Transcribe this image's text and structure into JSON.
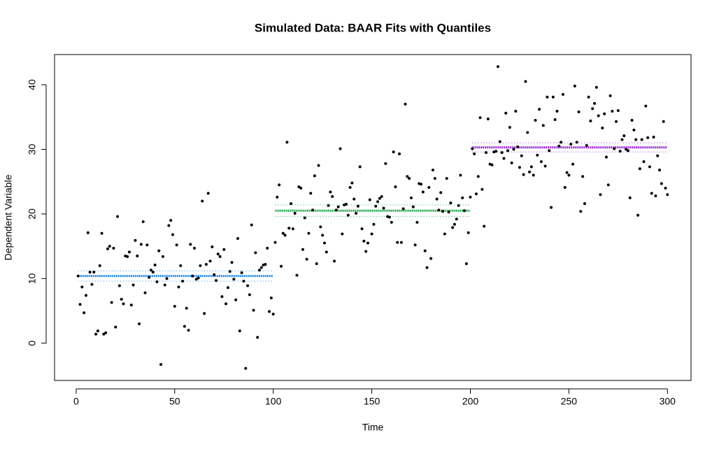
{
  "chart_data": {
    "type": "scatter",
    "title": "Simulated Data: BAAR Fits with Quantiles",
    "xlabel": "Time",
    "ylabel": "Dependent Variable",
    "xlim": [
      -10.96,
      311.96
    ],
    "ylim": [
      -5.77,
      44.67
    ],
    "xticks": [
      0,
      50,
      100,
      150,
      200,
      250,
      300
    ],
    "yticks": [
      0,
      10,
      20,
      30,
      40
    ],
    "color": "#000000",
    "x": [
      1,
      2,
      3,
      4,
      5,
      6,
      7,
      8,
      9,
      10,
      11,
      12,
      13,
      14,
      15,
      16,
      17,
      18,
      19,
      20,
      21,
      22,
      23,
      24,
      25,
      26,
      27,
      28,
      29,
      30,
      31,
      32,
      33,
      34,
      35,
      36,
      37,
      38,
      39,
      40,
      41,
      42,
      43,
      44,
      45,
      46,
      47,
      48,
      49,
      50,
      51,
      52,
      53,
      54,
      55,
      56,
      57,
      58,
      59,
      60,
      61,
      62,
      63,
      64,
      65,
      66,
      67,
      68,
      69,
      70,
      71,
      72,
      73,
      74,
      75,
      76,
      77,
      78,
      79,
      80,
      81,
      82,
      83,
      84,
      85,
      86,
      87,
      88,
      89,
      90,
      91,
      92,
      93,
      94,
      95,
      96,
      97,
      98,
      99,
      100,
      101,
      102,
      103,
      104,
      105,
      106,
      107,
      108,
      109,
      110,
      111,
      112,
      113,
      114,
      115,
      116,
      117,
      118,
      119,
      120,
      121,
      122,
      123,
      124,
      125,
      126,
      127,
      128,
      129,
      130,
      131,
      132,
      133,
      134,
      135,
      136,
      137,
      138,
      139,
      140,
      141,
      142,
      143,
      144,
      145,
      146,
      147,
      148,
      149,
      150,
      151,
      152,
      153,
      154,
      155,
      156,
      157,
      158,
      159,
      160,
      161,
      162,
      163,
      164,
      165,
      166,
      167,
      168,
      169,
      170,
      171,
      172,
      173,
      174,
      175,
      176,
      177,
      178,
      179,
      180,
      181,
      182,
      183,
      184,
      185,
      186,
      187,
      188,
      189,
      190,
      191,
      192,
      193,
      194,
      195,
      196,
      197,
      198,
      199,
      200,
      201,
      202,
      203,
      204,
      205,
      206,
      207,
      208,
      209,
      210,
      211,
      212,
      213,
      214,
      215,
      216,
      217,
      218,
      219,
      220,
      221,
      222,
      223,
      224,
      225,
      226,
      227,
      228,
      229,
      230,
      231,
      232,
      233,
      234,
      235,
      236,
      237,
      238,
      239,
      240,
      241,
      242,
      243,
      244,
      245,
      246,
      247,
      248,
      249,
      250,
      251,
      252,
      253,
      254,
      255,
      256,
      257,
      258,
      259,
      260,
      261,
      262,
      263,
      264,
      265,
      266,
      267,
      268,
      269,
      270,
      271,
      272,
      273,
      274,
      275,
      276,
      277,
      278,
      279,
      280,
      281,
      282,
      283,
      284,
      285,
      286,
      287,
      288,
      289,
      290,
      291,
      292,
      293,
      294,
      295,
      296,
      297,
      298,
      299,
      300
    ],
    "values": [
      10.4,
      6,
      8.7,
      4.7,
      7.4,
      17.1,
      11,
      9.1,
      11,
      1.4,
      1.9,
      12,
      17,
      1.4,
      1.6,
      14.6,
      15,
      6.3,
      14.7,
      2.5,
      19.6,
      8.9,
      6.8,
      6.1,
      13.5,
      13.4,
      14.1,
      5.9,
      9,
      15.9,
      13.5,
      3,
      15.3,
      18.8,
      7.8,
      15.2,
      10.2,
      11.3,
      11,
      12.1,
      9.5,
      14.3,
      -3.3,
      13.4,
      9,
      10,
      18.2,
      19,
      16.8,
      5.7,
      15.2,
      8.7,
      12,
      9.6,
      2.6,
      5.4,
      2,
      15.3,
      10.4,
      14.7,
      9.9,
      10.1,
      12,
      22,
      4.6,
      12.2,
      23.2,
      12.7,
      14.9,
      10.6,
      9.7,
      13.8,
      13.4,
      7.2,
      14.5,
      6.1,
      8.6,
      11.1,
      12.5,
      9.9,
      6.7,
      16.2,
      1.9,
      10.9,
      9.6,
      -3.9,
      8.9,
      7.5,
      18.3,
      5.1,
      14,
      0.9,
      11.3,
      11.7,
      12.1,
      12.2,
      14.7,
      4.9,
      7,
      4.5,
      15.6,
      22.6,
      24.5,
      11.9,
      17,
      16.7,
      31.1,
      17.8,
      21.6,
      17.7,
      20.1,
      10.5,
      24.2,
      24,
      14.5,
      19.4,
      13,
      17,
      23.2,
      20.6,
      25.9,
      12.3,
      27.5,
      18,
      16.7,
      15.5,
      14.1,
      21.3,
      23.4,
      22.7,
      12.7,
      20.6,
      21.1,
      30.1,
      16.9,
      21.4,
      21.5,
      19.8,
      24.1,
      24.8,
      22.3,
      20.1,
      21.2,
      27.3,
      17.7,
      15.8,
      14.2,
      15.5,
      22.2,
      16.9,
      18.4,
      21.2,
      21.9,
      22.4,
      22.7,
      20.9,
      27.8,
      19.6,
      19.5,
      18.7,
      29.6,
      24.2,
      15.6,
      29.3,
      15.6,
      20.8,
      37,
      25.8,
      25.5,
      22.5,
      21.1,
      15.2,
      18.7,
      24.7,
      24.6,
      23.4,
      14.3,
      11.7,
      24.1,
      13.1,
      26.8,
      25.5,
      22.3,
      20.6,
      23.3,
      20.4,
      16.9,
      25.5,
      20.3,
      21.7,
      17.9,
      18.4,
      19.2,
      21.3,
      26,
      22.5,
      20.5,
      12.3,
      17.1,
      22.6,
      30.1,
      29.3,
      23.1,
      25.8,
      34.9,
      23.8,
      18.1,
      29.5,
      34.7,
      27.7,
      27.6,
      29.6,
      29.7,
      42.8,
      31.2,
      29.5,
      28.6,
      35.6,
      29.8,
      33.4,
      27.9,
      30,
      35.9,
      30.4,
      27.2,
      29,
      26.1,
      40.5,
      32.6,
      26.5,
      27.3,
      26,
      34.5,
      29.1,
      36.2,
      28.1,
      33.7,
      27.4,
      38.1,
      29.8,
      21,
      38.1,
      34.6,
      35.9,
      30.5,
      31.1,
      38.5,
      24.1,
      26.4,
      26,
      30.8,
      27.7,
      39.8,
      31.1,
      35.8,
      20.4,
      25.8,
      21.6,
      30.6,
      38.1,
      34.4,
      36.3,
      37.1,
      39.6,
      35.2,
      23,
      33.3,
      35.5,
      28.8,
      24.5,
      38.3,
      35.9,
      30.1,
      34.3,
      36,
      29.7,
      31.5,
      32.1,
      30,
      29.8,
      22.5,
      34.5,
      33,
      31.5,
      19.8,
      27,
      31.5,
      28.1,
      36.7,
      31.8,
      27.3,
      23.2,
      31.9,
      22.8,
      29,
      26.8,
      24.7,
      34.3,
      24,
      23
    ],
    "fits": [
      {
        "color": "#1e88e5",
        "x": [
          1,
          100
        ],
        "values": [
          10.4,
          10.4
        ],
        "lower": [
          9.6,
          9.6
        ],
        "upper": [
          11.2,
          11.2
        ]
      },
      {
        "color": "#1fa84a",
        "x": [
          101,
          200
        ],
        "values": [
          20.5,
          20.5
        ],
        "lower": [
          19.6,
          19.6
        ],
        "upper": [
          21.4,
          21.4
        ]
      },
      {
        "color": "#9b1fd6",
        "x": [
          201,
          300
        ],
        "values": [
          30.3,
          30.3
        ],
        "lower": [
          29.6,
          29.6
        ],
        "upper": [
          31.0,
          31.0
        ]
      }
    ]
  }
}
